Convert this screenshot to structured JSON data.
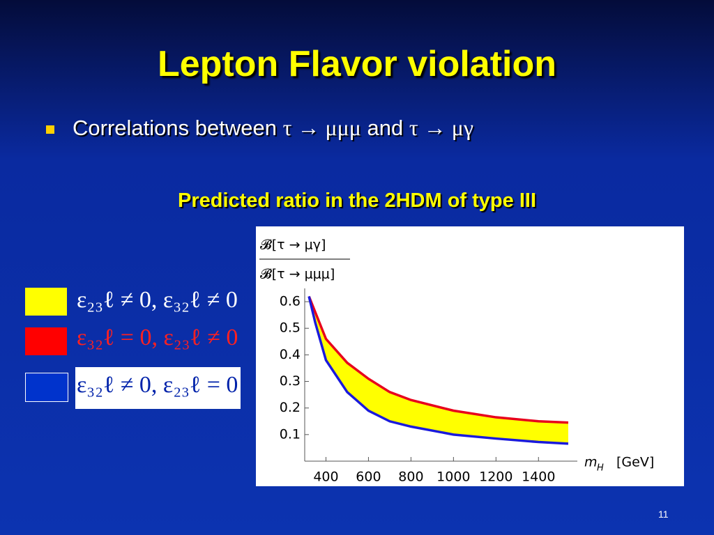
{
  "slide": {
    "title": "Lepton Flavor violation",
    "bullet": {
      "text": "Correlations between",
      "process_1": "τ → μμμ",
      "joiner": "and",
      "process_2": "τ → μγ"
    },
    "subtitle": "Predicted ratio in the 2HDM of type III",
    "legend": [
      {
        "label": "ε₂₃ℓ ≠ 0, ε₃₂ℓ ≠ 0",
        "color": "#ffff00",
        "text_color": "#ffffff"
      },
      {
        "label": "ε₃₂ℓ = 0, ε₂₃ℓ ≠ 0",
        "color": "#ff0000",
        "text_color": "#ff2020"
      },
      {
        "label": "ε₃₂ℓ ≠ 0, ε₂₃ℓ = 0",
        "color": "#0033cc",
        "text_color": "#0022aa"
      }
    ],
    "page_number": "11"
  },
  "chart_data": {
    "type": "line",
    "y_label": {
      "numerator": "𝓑[τ → μγ]",
      "denominator": "𝓑[τ → μμμ]"
    },
    "x_label": {
      "symbol": "m",
      "subscript": "H",
      "unit": "[GeV]"
    },
    "x": [
      320,
      350,
      400,
      500,
      600,
      700,
      800,
      1000,
      1200,
      1400,
      1540
    ],
    "series": [
      {
        "color": "#e8001c",
        "values": [
          0.62,
          0.56,
          0.46,
          0.37,
          0.31,
          0.26,
          0.23,
          0.19,
          0.165,
          0.15,
          0.145
        ]
      },
      {
        "color": "#1a1adc",
        "values": [
          0.62,
          0.52,
          0.38,
          0.26,
          0.19,
          0.15,
          0.13,
          0.1,
          0.085,
          0.072,
          0.066
        ]
      }
    ],
    "band_color": "#ffff00",
    "xlim": [
      300,
      1550
    ],
    "ylim": [
      0,
      0.65
    ],
    "xticks": [
      400,
      600,
      800,
      1000,
      1200,
      1400
    ],
    "yticks": [
      0.1,
      0.2,
      0.3,
      0.4,
      0.5,
      0.6
    ]
  }
}
